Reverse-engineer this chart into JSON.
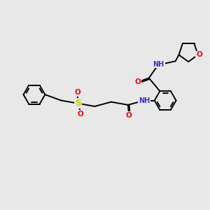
{
  "background_color": "#e8e8e8",
  "bond_color": "#000000",
  "atom_colors": {
    "O": "#ff0000",
    "N": "#3333cc",
    "S": "#cccc00",
    "H": "#808080",
    "C": "#000000"
  },
  "lw": 1.4,
  "fs": 7.5
}
